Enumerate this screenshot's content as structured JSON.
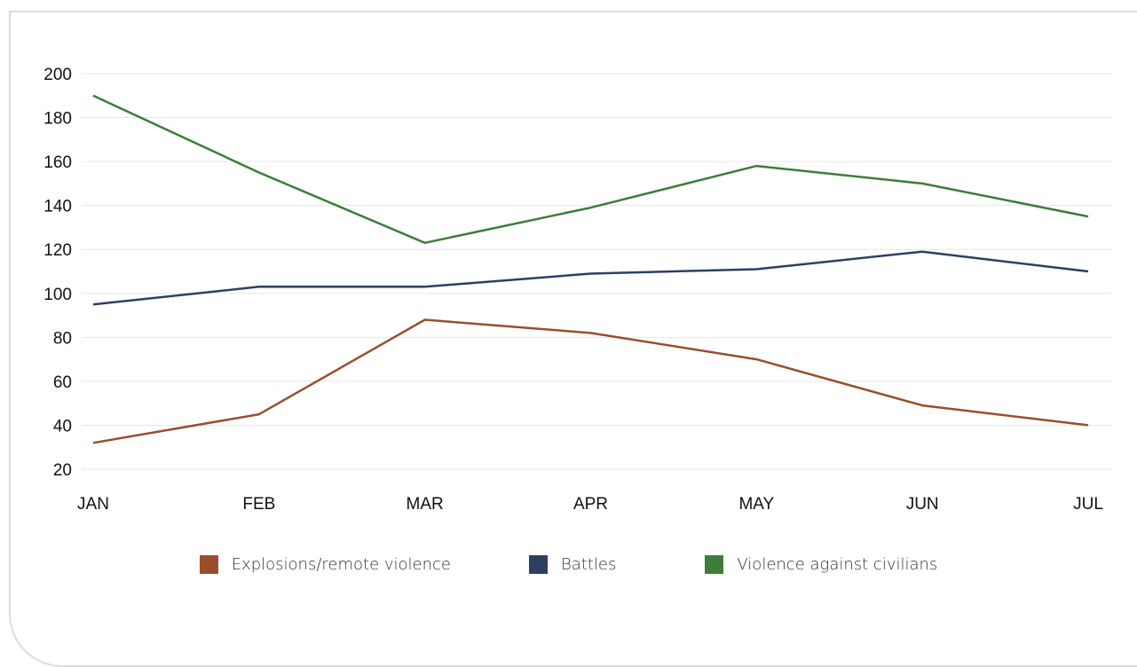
{
  "chart_data": {
    "type": "line",
    "categories": [
      "JAN",
      "FEB",
      "MAR",
      "APR",
      "MAY",
      "JUN",
      "JUL"
    ],
    "yticks": [
      20,
      40,
      60,
      80,
      100,
      120,
      140,
      160,
      180,
      200
    ],
    "ylim": [
      20,
      200
    ],
    "grid": true,
    "legend_position": "bottom",
    "series": [
      {
        "name": "Explosions/remote violence",
        "color": "#9a4e2e",
        "values": [
          32,
          45,
          88,
          82,
          70,
          49,
          40
        ]
      },
      {
        "name": "Battles",
        "color": "#2e3f63",
        "values": [
          95,
          103,
          103,
          109,
          111,
          119,
          110
        ]
      },
      {
        "name": "Violence against civilians",
        "color": "#3d7d3a",
        "values": [
          190,
          155,
          123,
          139,
          158,
          150,
          135
        ]
      }
    ]
  }
}
